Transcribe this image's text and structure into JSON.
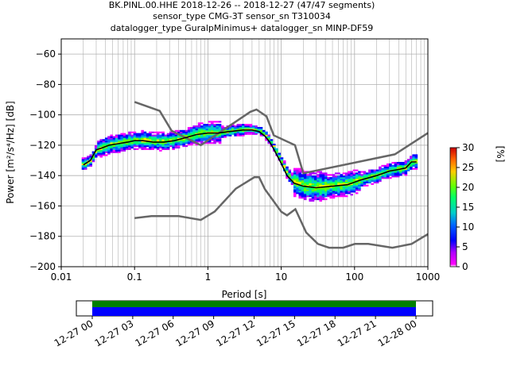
{
  "title_lines": [
    "BK.PINL.00.HHE   2018-12-26 -- 2018-12-27  (47/47 segments)",
    "sensor_type CMG-3T sensor_sn T310034",
    "datalogger_type GuralpMinimus+ datalogger_sn MINP-DF59"
  ],
  "chart_data": {
    "type": "heatmap",
    "xlabel": "Period [s]",
    "ylabel": "Power [m²/s⁴/Hz] [dB]",
    "xscale": "log",
    "xlim": [
      0.01,
      1000
    ],
    "ylim": [
      -200,
      -50
    ],
    "x_tick_labels": [
      "0.01",
      "0.1",
      "1",
      "10",
      "100",
      "1000"
    ],
    "y_tick_labels": [
      "−200",
      "−180",
      "−160",
      "−140",
      "−120",
      "−100",
      "−80",
      "−60"
    ],
    "grid": true,
    "colorbar": {
      "label": "[%]",
      "range": [
        0,
        30
      ],
      "tick_labels": [
        "0",
        "5",
        "10",
        "15",
        "20",
        "25",
        "30"
      ]
    },
    "noise_model_high": {
      "x": [
        0.1,
        0.22,
        0.32,
        0.8,
        3.8,
        4.6,
        6.3,
        7.9,
        15.4,
        20,
        354.8,
        1000
      ],
      "y": [
        -91.5,
        -97.4,
        -110.5,
        -120,
        -98,
        -96.5,
        -101,
        -113.5,
        -120,
        -138.5,
        -126,
        -112
      ]
    },
    "noise_model_low": {
      "x": [
        0.1,
        0.17,
        0.4,
        0.8,
        1.24,
        2.4,
        4.3,
        5,
        6,
        10,
        12,
        15.6,
        21.9,
        31.6,
        45,
        70,
        101,
        154,
        328,
        600,
        1000
      ],
      "y": [
        -168,
        -166.7,
        -166.7,
        -169.2,
        -163.7,
        -148.6,
        -141.1,
        -141.1,
        -149,
        -163.8,
        -166.2,
        -162.1,
        -177.5,
        -185,
        -187.5,
        -187.5,
        -185,
        -185,
        -187.5,
        -185,
        -178.5
      ]
    },
    "mean_curve": {
      "x": [
        0.02,
        0.025,
        0.03,
        0.035,
        0.045,
        0.06,
        0.08,
        0.1,
        0.13,
        0.18,
        0.25,
        0.35,
        0.5,
        0.7,
        1,
        1.4,
        2,
        3,
        4,
        5,
        6,
        7,
        8,
        10,
        12,
        15,
        20,
        30,
        50,
        80,
        120,
        200,
        300,
        400,
        500,
        600,
        700
      ],
      "y": [
        -133,
        -130,
        -123,
        -122,
        -120,
        -119,
        -118,
        -117,
        -117,
        -118,
        -118,
        -117,
        -115,
        -113,
        -112,
        -112,
        -111,
        -110,
        -110,
        -111,
        -114,
        -118,
        -123,
        -132,
        -140,
        -145,
        -147,
        -148,
        -147,
        -146,
        -143,
        -140,
        -137,
        -136,
        -135,
        -131,
        -131
      ]
    },
    "time_axis": {
      "tick_labels": [
        "12-27 00",
        "12-27 03",
        "12-27 06",
        "12-27 09",
        "12-27 12",
        "12-27 15",
        "12-27 18",
        "12-27 21",
        "12-28 00"
      ],
      "coverage_colors": [
        "#008000",
        "#0000ff"
      ]
    }
  },
  "colors": {
    "noise_model": "#666666",
    "mean_curve": "#000000",
    "grid": "#b0b0b0"
  }
}
